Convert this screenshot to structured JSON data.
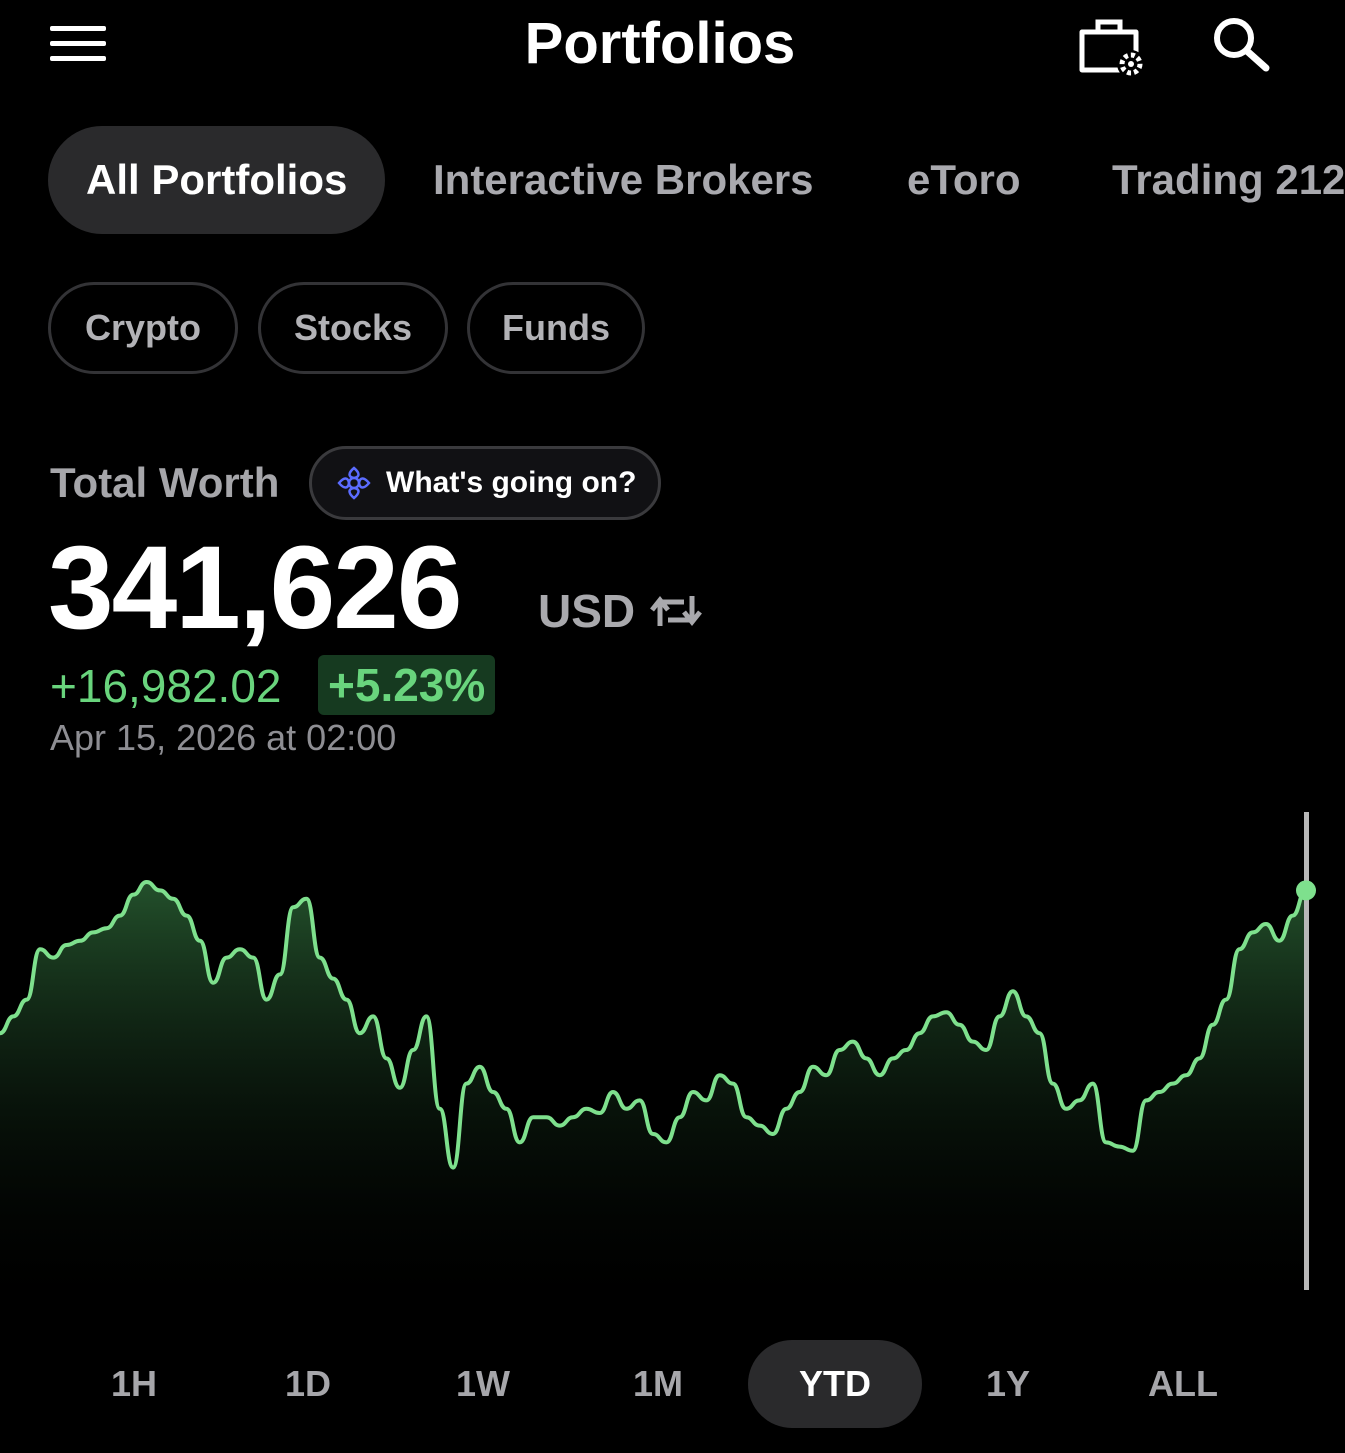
{
  "header": {
    "title": "Portfolios",
    "icons": [
      "menu-icon",
      "portfolio-settings-icon",
      "search-icon"
    ]
  },
  "tabs": [
    {
      "label": "All Portfolios",
      "active": true
    },
    {
      "label": "Interactive Brokers",
      "active": false
    },
    {
      "label": "eToro",
      "active": false
    },
    {
      "label": "Trading 212",
      "active": false
    }
  ],
  "filters": [
    "Crypto",
    "Stocks",
    "Funds"
  ],
  "summary": {
    "label": "Total Worth",
    "ai_button": "What's going on?",
    "total": "341,626",
    "currency": "USD",
    "change_abs": "+16,982.02",
    "change_pct": "+5.23%",
    "timestamp": "Apr 15, 2026 at 02:00"
  },
  "colors": {
    "background": "#000000",
    "positive": "#69d47d",
    "positive_bg": "#163a20",
    "accent_ai": "#5b6cff"
  },
  "chart_data": {
    "type": "area",
    "title": "",
    "xlabel": "",
    "ylabel": "",
    "grid": false,
    "ylim": [
      0,
      100
    ],
    "values": [
      54,
      58,
      62,
      74,
      72,
      75,
      76,
      78,
      79,
      82,
      87,
      90,
      88,
      86,
      82,
      76,
      66,
      72,
      74,
      72,
      62,
      68,
      84,
      86,
      72,
      67,
      62,
      54,
      58,
      48,
      41,
      50,
      58,
      36,
      22,
      42,
      46,
      40,
      36,
      28,
      34,
      34,
      32,
      34,
      36,
      35,
      40,
      36,
      38,
      30,
      28,
      34,
      40,
      38,
      44,
      42,
      34,
      32,
      30,
      36,
      40,
      46,
      44,
      50,
      52,
      48,
      44,
      48,
      50,
      54,
      58,
      59,
      56,
      52,
      50,
      58,
      64,
      58,
      54,
      42,
      36,
      38,
      42,
      28,
      27,
      26,
      38,
      40,
      42,
      44,
      48,
      56,
      62,
      74,
      78,
      80,
      76,
      82,
      88
    ]
  },
  "ranges": [
    {
      "label": "1H",
      "active": false
    },
    {
      "label": "1D",
      "active": false
    },
    {
      "label": "1W",
      "active": false
    },
    {
      "label": "1M",
      "active": false
    },
    {
      "label": "YTD",
      "active": true
    },
    {
      "label": "1Y",
      "active": false
    },
    {
      "label": "ALL",
      "active": false
    }
  ]
}
